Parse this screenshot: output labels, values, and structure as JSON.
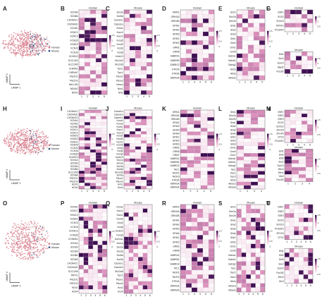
{
  "figure": {
    "rows": [
      {
        "umap": {
          "letter": "A",
          "xlabel": "UMAP 1",
          "ylabel": "UMAP 2",
          "legend": [
            "Human",
            "Mouse"
          ],
          "human_color": "#d9818f",
          "mouse_color": "#3e5a86"
        },
        "heatmaps": [
          {
            "letter": "B",
            "title": "Human",
            "ticks": [
              "1",
              "2",
              "3",
              "4",
              "5"
            ],
            "genes": [
              "SCN3A",
              "SCN8A",
              "CACNA1C",
              "CACNA1E",
              "KCNA1",
              "KCNC1",
              "KCNC2",
              "KCNQ5",
              "KCND2",
              "KCNJ3",
              "KCNJ6",
              "KCNK10",
              "SLC12A2",
              "SLC12A5",
              "CHRFA1",
              "CHRNA7",
              "PIEZO1",
              "PIEZO2",
              "HALLON",
              "NSUN1",
              "NNTS"
            ],
            "colorbar": [
              1.5,
              1.0,
              0.5,
              0.0
            ]
          },
          {
            "letter": "C",
            "title": "Mouse",
            "ticks": [
              "1",
              "2",
              "3",
              "4",
              "5"
            ],
            "genes": [
              "Scn3a",
              "Scn8a",
              "Cacna1c",
              "Cacna1e",
              "Kcna1",
              "Kcnc1",
              "Kcnc2",
              "Kcnq5",
              "Kcnd2",
              "Kcnj3",
              "Kcnj6",
              "Kcnk10",
              "Slc12a2",
              "Slc12a5",
              "Trpc1",
              "Trpv1",
              "Piezo1",
              "Piezo2",
              "Nnsun",
              "Nnn1",
              "Nnts"
            ],
            "colorbar": [
              1.5,
              1.0,
              0.5,
              0.0
            ]
          },
          {
            "letter": "D",
            "title": "Human",
            "ticks": [
              "1",
              "2",
              "3",
              "4",
              "5",
              "6"
            ],
            "genes": [
              "GRIN1",
              "GRIN2A",
              "GRIN2B",
              "GRIA1",
              "GRIA2",
              "GRIA3",
              "GRIK1",
              "GRIK2",
              "GRM1",
              "GRM5",
              "GABRA1",
              "GABRB2",
              "GABRG2",
              "HTR2A",
              "HTR3A",
              "ADRA2A"
            ],
            "colorbar": [
              1.5,
              1.0,
              0.5,
              0.0
            ]
          },
          {
            "letter": "E",
            "title": "Mouse",
            "ticks": [
              "1",
              "2",
              "3",
              "4",
              "5"
            ],
            "genes": [
              "Grin1",
              "Grin2a",
              "Grin2b",
              "Gria1",
              "Gria2",
              "Gria3",
              "Grik1",
              "Grik2",
              "Grm1",
              "Grm5",
              "Gabra1",
              "Gabrb2",
              "Gabrg2",
              "Htr2a",
              "Htr3a",
              "Adra2a"
            ],
            "colorbar": [
              1.5,
              1.0,
              0.5,
              0.0
            ]
          },
          {
            "letter": "F",
            "title": "Human",
            "ticks": [
              "1",
              "2",
              "3",
              "4",
              "5"
            ],
            "genes": [
              "EBF1",
              "SOX2",
              "SOX10",
              "MYEF2",
              "POU3F2"
            ],
            "colorbar": [
              1.5,
              1.0,
              0.5
            ]
          },
          {
            "letter": "G",
            "title": "Mouse",
            "ticks": [
              "1",
              "2",
              "3",
              "4",
              "5"
            ],
            "genes": [
              "Ebf1",
              "Sox2",
              "Sox10",
              "Myef2",
              "Pou3f2"
            ],
            "colorbar": [
              1.5,
              1.0,
              0.5
            ]
          }
        ]
      },
      {
        "umap": {
          "letter": "H",
          "xlabel": "UMAP 1",
          "ylabel": "UMAP 2",
          "legend": [
            "Human",
            "Mouse"
          ],
          "human_color": "#d9818f",
          "mouse_color": "#3e5a86"
        },
        "heatmaps": [
          {
            "letter": "I",
            "title": "Human",
            "ticks": [
              "1",
              "2",
              "3",
              "4",
              "5"
            ],
            "genes": [
              "CACNA1C",
              "CACNA1E",
              "CACNA1H",
              "KCNA1",
              "KCNA2",
              "KCNB1",
              "KCNC1",
              "KCNC2",
              "KCND2",
              "KCND3",
              "KCNH1",
              "KCNH5",
              "KCNJ3",
              "KCNJ6",
              "KCNQ5",
              "KCNK10",
              "SCN1A",
              "SCN2A",
              "SCN3A",
              "SCN8A",
              "SLC12A5",
              "SCN9A",
              "PIEZO1",
              "PIEZO2",
              "HCN1",
              "HCN4"
            ],
            "colorbar": [
              1.5,
              1.0,
              0.5,
              0.0
            ]
          },
          {
            "letter": "J",
            "title": "Mouse",
            "ticks": [
              "1",
              "2",
              "3",
              "4",
              "5"
            ],
            "genes": [
              "Cacna1c",
              "Cacna1e",
              "Cacna1h",
              "Kcna1",
              "Kcna2",
              "Kcnb1",
              "Kcnc1",
              "Kcnc2",
              "Kcnd2",
              "Kcnd3",
              "Kcnh1",
              "Kcnh5",
              "Kcnj3",
              "Kcnj6",
              "Kcnq5",
              "Kcnk10",
              "Scn1a",
              "Scn2a",
              "Scn3a",
              "Scn8a",
              "Slc12a5",
              "Scn9a",
              "Piezo1",
              "Piezo2",
              "Hcn1",
              "Hcn4"
            ],
            "colorbar": [
              1.5,
              1.0,
              0.5,
              0.0
            ]
          },
          {
            "letter": "K",
            "title": "Human",
            "ticks": [
              "1",
              "2",
              "3",
              "4",
              "5"
            ],
            "genes": [
              "GRIN1",
              "GRIN2A",
              "GRIN2B",
              "GRIA1",
              "GRIA2",
              "GRIA3",
              "GRIA4",
              "GRIK1",
              "GRIK2",
              "GRIK3",
              "GRM1",
              "GRM5",
              "GRM7",
              "GABRA1",
              "GABRB1",
              "GABRG2",
              "TAC1",
              "TACR1",
              "TACR3",
              "HTR2A",
              "ADRA1A",
              "ADRA2A"
            ],
            "colorbar": [
              1.5,
              1.0,
              0.5,
              0.0
            ]
          },
          {
            "letter": "L",
            "title": "Mouse",
            "ticks": [
              "1",
              "2",
              "3",
              "4"
            ],
            "genes": [
              "Grin1",
              "Grin2a",
              "Grin2b",
              "Gria1",
              "Gria2",
              "Gria3",
              "Gria4",
              "Grik1",
              "Grik2",
              "Grik3",
              "Grm1",
              "Grm5",
              "Grm7",
              "Gabra1",
              "Gabrb1",
              "Gabrg2",
              "Tac1",
              "Tacr1",
              "Tacr3",
              "Htr2a",
              "Adra1a",
              "Adra2a"
            ],
            "colorbar": [
              1.5,
              1.0,
              0.5,
              0.0
            ]
          },
          {
            "letter": "M",
            "title": "Human",
            "ticks": [
              "1",
              "2",
              "3",
              "4",
              "5"
            ],
            "genes": [
              "EBF1",
              "EBF2",
              "EBF3",
              "SOX2",
              "SOX10",
              "ZFHX3",
              "ZFHX4",
              "OTX2",
              "POU3F2"
            ],
            "colorbar": [
              1.5,
              1.0,
              0.5
            ]
          },
          {
            "letter": "N",
            "title": "Mouse",
            "ticks": [
              "1",
              "2",
              "3",
              "4"
            ],
            "genes": [
              "Ebf1",
              "Ebf2",
              "Ebf3",
              "Sox2",
              "Sox10",
              "Zfhx3",
              "Zfhx4",
              "Otx2",
              "Pou3f2"
            ],
            "colorbar": [
              1.5,
              1.0,
              0.5
            ]
          }
        ]
      },
      {
        "umap": {
          "letter": "O",
          "xlabel": "UMAP 1",
          "ylabel": "UMAP 2",
          "legend": [
            "Human",
            "Mouse"
          ],
          "human_color": "#d9818f",
          "mouse_color": "#3e5a86"
        },
        "heatmaps": [
          {
            "letter": "P",
            "title": "Human",
            "ticks": [
              "1",
              "2",
              "3",
              "4",
              "5",
              "6"
            ],
            "genes": [
              "KCNA1",
              "KCNC1",
              "KCNC2",
              "KCND2",
              "KCNJ3",
              "KCNJ6",
              "KCNK10",
              "KCNQ5",
              "KCNMA1",
              "SCN1A",
              "SCN2A",
              "SCN3A",
              "SCN8A",
              "SCN9A",
              "CACNA1C",
              "CACNA1E",
              "SLC12A5",
              "TRPV1",
              "PIEZO1",
              "PIEZO2",
              "HCN1",
              "HCN4"
            ],
            "colorbar": [
              1.5,
              1.0,
              0.5,
              0.0
            ]
          },
          {
            "letter": "Q",
            "title": "Mouse",
            "ticks": [
              "1",
              "2",
              "3",
              "4",
              "5",
              "6"
            ],
            "genes": [
              "Kcna1",
              "Kcnc1",
              "Kcnc2",
              "Kcnd2",
              "Kcnj3",
              "Kcnj6",
              "Kcnk10",
              "Kcnq5",
              "Kcnma1",
              "Scn1a",
              "Scn2a",
              "Scn3a",
              "Scn8a",
              "Scn9a",
              "Cacna1c",
              "Cacna1e",
              "Slc12a5",
              "Trpv1",
              "Piezo1",
              "Piezo2",
              "Hcn1",
              "Hcn4"
            ],
            "colorbar": [
              1.5,
              1.0,
              0.5,
              0.0
            ]
          },
          {
            "letter": "R",
            "title": "Human",
            "ticks": [
              "1",
              "2",
              "3",
              "4",
              "5",
              "6"
            ],
            "genes": [
              "GRIN1",
              "GRIN2A",
              "GRIN2B",
              "GRIA1",
              "GRIA2",
              "GRIA3",
              "GRIA4",
              "GRIK1",
              "GRIK2",
              "GRM1",
              "GRM5",
              "GABRA1",
              "GABRB1",
              "GABRG2",
              "TAC1",
              "TACR1",
              "TACR3",
              "HTR2A",
              "ADRA1A",
              "ADRA2A"
            ],
            "colorbar": [
              1.5,
              1.0,
              0.5,
              0.0
            ]
          },
          {
            "letter": "S",
            "title": "Mouse",
            "ticks": [
              "1",
              "2",
              "3",
              "4",
              "5",
              "6"
            ],
            "genes": [
              "Grin1",
              "Grin2a",
              "Grin2b",
              "Gria1",
              "Gria2",
              "Gria3",
              "Gria4",
              "Grik1",
              "Grik2",
              "Grm1",
              "Grm5",
              "Gabra1",
              "Gabrb1",
              "Gabrg2",
              "Tac1",
              "Tacr1",
              "Tacr3",
              "Htr2a",
              "Adra1a",
              "Adra2a"
            ],
            "colorbar": [
              1.5,
              1.0,
              0.5,
              0.0
            ]
          },
          {
            "letter": "T",
            "title": "Human",
            "ticks": [
              "1",
              "2",
              "3",
              "4",
              "5",
              "6"
            ],
            "genes": [
              "EBF1",
              "EBF2",
              "EBF3",
              "SOX2",
              "SOX10",
              "POU3F2",
              "ZFHX3",
              "OTX2"
            ],
            "colorbar": [
              1.5,
              1.0,
              0.5
            ]
          },
          {
            "letter": "U",
            "title": "Mouse",
            "ticks": [
              "1",
              "2",
              "3",
              "4",
              "5",
              "6"
            ],
            "genes": [
              "Ebf1",
              "Ebf2",
              "Ebf3",
              "Sox2",
              "Sox10",
              "Pou3f2",
              "Zfhx3",
              "Otx2"
            ],
            "colorbar": [
              1.5,
              1.0,
              0.5
            ]
          }
        ]
      }
    ],
    "colors": {
      "low": "#ffffff",
      "mid": "#e79ac4",
      "high": "#3a0b4f"
    }
  }
}
